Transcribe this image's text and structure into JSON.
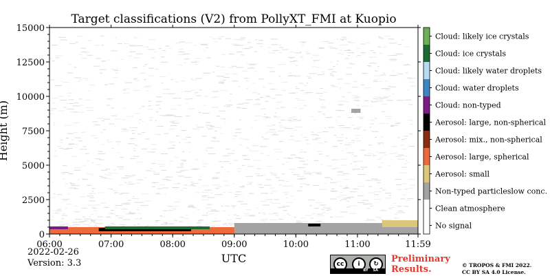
{
  "chart_data": {
    "type": "heatmap",
    "title": "Target classifications (V2) from PollyXT_FMI at Kuopio",
    "xlabel": "UTC",
    "ylabel": "Height (m)",
    "x_range_hours": [
      6.0,
      11.983
    ],
    "x_ticks": [
      {
        "h": 6.0,
        "label": "06:00"
      },
      {
        "h": 7.0,
        "label": "07:00"
      },
      {
        "h": 8.0,
        "label": "08:00"
      },
      {
        "h": 9.0,
        "label": "09:00"
      },
      {
        "h": 10.0,
        "label": "10:00"
      },
      {
        "h": 11.0,
        "label": "11:00"
      },
      {
        "h": 11.983,
        "label": "11:59"
      }
    ],
    "ylim": [
      0,
      15000
    ],
    "y_ticks": [
      0,
      2500,
      5000,
      7500,
      10000,
      12500,
      15000
    ],
    "y_tick_labels": [
      "0",
      "2500",
      "5000",
      "7500",
      "10000",
      "12500",
      "15000"
    ],
    "legend": [
      {
        "label": "Cloud: likely ice crystals",
        "color": "#6fae58"
      },
      {
        "label": "Cloud: ice crystals",
        "color": "#1c6b32"
      },
      {
        "label": "Cloud: likely water droplets",
        "color": "#b9dbf2"
      },
      {
        "label": "Cloud: water droplets",
        "color": "#3c86c6"
      },
      {
        "label": "Cloud: non-typed",
        "color": "#7a1b86"
      },
      {
        "label": "Aerosol: large, non-spherical",
        "color": "#000000"
      },
      {
        "label": "Aerosol: mix., non-spherical",
        "color": "#8c2c0e"
      },
      {
        "label": "Aerosol: large, spherical",
        "color": "#ee6a3a"
      },
      {
        "label": "Aerosol: small",
        "color": "#dcc67a"
      },
      {
        "label": "Non-typed particleslow conc.",
        "color": "#a3a3a3"
      },
      {
        "label": "Clean atmosphere",
        "color": "#ffffff"
      },
      {
        "label": "No signal",
        "color": "#ffffff"
      }
    ],
    "legend_placement": "right",
    "regions": [
      {
        "class": "Non-typed particleslow conc.",
        "x": [
          6.0,
          11.983
        ],
        "y": [
          0,
          350
        ]
      },
      {
        "class": "Non-typed particleslow conc.",
        "x": [
          9.0,
          11.983
        ],
        "y": [
          300,
          800
        ]
      },
      {
        "class": "Aerosol: large, spherical",
        "x": [
          6.0,
          9.0
        ],
        "y": [
          0,
          500
        ]
      },
      {
        "class": "Aerosol: large, non-spherical",
        "x": [
          6.8,
          8.3
        ],
        "y": [
          200,
          450
        ]
      },
      {
        "class": "Cloud: ice crystals",
        "x": [
          6.9,
          8.6
        ],
        "y": [
          350,
          550
        ]
      },
      {
        "class": "Cloud: non-typed",
        "x": [
          6.0,
          6.3
        ],
        "y": [
          350,
          550
        ]
      },
      {
        "class": "Aerosol: large, spherical",
        "x": [
          11.4,
          11.9
        ],
        "y": [
          600,
          900
        ]
      },
      {
        "class": "Aerosol: small",
        "x": [
          11.4,
          11.983
        ],
        "y": [
          500,
          1000
        ]
      },
      {
        "class": "Aerosol: large, non-spherical",
        "x": [
          10.2,
          10.4
        ],
        "y": [
          550,
          750
        ]
      },
      {
        "class": "Non-typed particleslow conc.",
        "x": [
          10.9,
          11.05
        ],
        "y": [
          8800,
          9100
        ]
      }
    ]
  },
  "footer": {
    "date": "2022-02-26",
    "version": "Version: 3.3",
    "preliminary": "Preliminary\nResults.",
    "copyright": "© TROPOS & FMI 2022.\nCC BY SA 4.0 License.",
    "cc_badge": {
      "by": "BY",
      "sa": "SA"
    }
  }
}
